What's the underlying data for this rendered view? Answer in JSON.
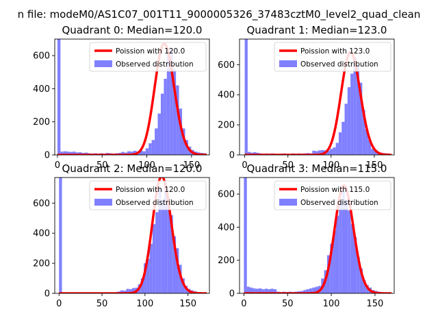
{
  "figure": {
    "suptitle": "n file: modeM0/AS1C07_001T11_9000005326_37483cztM0_level2_quad_clean"
  },
  "colors": {
    "fit": "#ff0000",
    "hist": "#8080ff",
    "axis": "#000000"
  },
  "chart_data": [
    {
      "type": "bar",
      "title": "Quadrant 0: Median=120.0",
      "median": 120.0,
      "xlim": [
        -3,
        170
      ],
      "ylim": [
        0,
        700
      ],
      "xticks": [
        0,
        50,
        100,
        150
      ],
      "yticks": [
        0,
        200,
        400,
        600
      ],
      "legend": {
        "position": "top-right",
        "fit_label": "Poission with 120.0",
        "hist_label": "Observed distribution"
      },
      "bin_width": 3.4,
      "bins": [
        [
          0,
          700
        ],
        [
          3.4,
          20
        ],
        [
          6.8,
          22
        ],
        [
          10.2,
          20
        ],
        [
          13.6,
          18
        ],
        [
          17,
          20
        ],
        [
          20.4,
          15
        ],
        [
          23.8,
          16
        ],
        [
          27.2,
          12
        ],
        [
          30.6,
          14
        ],
        [
          34,
          10
        ],
        [
          37.4,
          8
        ],
        [
          40.8,
          10
        ],
        [
          44.2,
          8
        ],
        [
          47.6,
          10
        ],
        [
          51,
          8
        ],
        [
          54.4,
          12
        ],
        [
          57.8,
          10
        ],
        [
          61.2,
          8
        ],
        [
          64.6,
          10
        ],
        [
          68,
          12
        ],
        [
          71.4,
          18
        ],
        [
          74.8,
          14
        ],
        [
          78.2,
          22
        ],
        [
          81.6,
          20
        ],
        [
          85,
          25
        ],
        [
          88.4,
          20
        ],
        [
          91.8,
          28
        ],
        [
          95.2,
          22
        ],
        [
          98.6,
          40
        ],
        [
          102,
          70
        ],
        [
          105.4,
          90
        ],
        [
          108.8,
          160
        ],
        [
          112.2,
          250
        ],
        [
          115.6,
          370
        ],
        [
          119,
          460
        ],
        [
          122.4,
          620
        ],
        [
          125.8,
          640
        ],
        [
          129.2,
          520
        ],
        [
          132.6,
          420
        ],
        [
          136,
          280
        ],
        [
          139.4,
          160
        ],
        [
          142.8,
          90
        ],
        [
          146.2,
          50
        ],
        [
          149.6,
          30
        ],
        [
          153,
          20
        ],
        [
          156.4,
          15
        ],
        [
          159.8,
          12
        ],
        [
          163.2,
          10
        ]
      ]
    },
    {
      "type": "bar",
      "title": "Quadrant 1: Median=123.0",
      "median": 123.0,
      "xlim": [
        -6,
        173
      ],
      "ylim": [
        0,
        770
      ],
      "xticks": [
        0,
        50,
        100,
        150
      ],
      "yticks": [
        0,
        200,
        400,
        600
      ],
      "legend": {
        "position": "top-right",
        "fit_label": "Poission with 123.0",
        "hist_label": "Observed distribution"
      },
      "bin_width": 3.4,
      "bins": [
        [
          0,
          770
        ],
        [
          3.4,
          20
        ],
        [
          6.8,
          15
        ],
        [
          10.2,
          18
        ],
        [
          13.6,
          14
        ],
        [
          17,
          10
        ],
        [
          20.4,
          8
        ],
        [
          23.8,
          10
        ],
        [
          27.2,
          8
        ],
        [
          30.6,
          10
        ],
        [
          34,
          8
        ],
        [
          37.4,
          6
        ],
        [
          40.8,
          8
        ],
        [
          44.2,
          10
        ],
        [
          47.6,
          8
        ],
        [
          51,
          6
        ],
        [
          54.4,
          10
        ],
        [
          57.8,
          8
        ],
        [
          61.2,
          10
        ],
        [
          64.6,
          8
        ],
        [
          68,
          10
        ],
        [
          71.4,
          12
        ],
        [
          74.8,
          10
        ],
        [
          78.2,
          28
        ],
        [
          81.6,
          25
        ],
        [
          85,
          30
        ],
        [
          88.4,
          32
        ],
        [
          91.8,
          30
        ],
        [
          95.2,
          28
        ],
        [
          98.6,
          40
        ],
        [
          102,
          50
        ],
        [
          105.4,
          80
        ],
        [
          108.8,
          150
        ],
        [
          112.2,
          220
        ],
        [
          115.6,
          340
        ],
        [
          119,
          450
        ],
        [
          122.4,
          540
        ],
        [
          125.8,
          650
        ],
        [
          129.2,
          600
        ],
        [
          132.6,
          480
        ],
        [
          136,
          300
        ],
        [
          139.4,
          170
        ],
        [
          142.8,
          100
        ],
        [
          146.2,
          40
        ],
        [
          149.6,
          25
        ],
        [
          153,
          20
        ],
        [
          156.4,
          15
        ],
        [
          159.8,
          12
        ],
        [
          163.2,
          10
        ]
      ]
    },
    {
      "type": "bar",
      "title": "Quadrant 2: Median=120.0",
      "median": 120.0,
      "xlim": [
        -5,
        175
      ],
      "ylim": [
        0,
        770
      ],
      "xticks": [
        0,
        50,
        100,
        150
      ],
      "yticks": [
        0,
        200,
        400,
        600
      ],
      "legend": {
        "position": "top-right",
        "fit_label": "Poission with 120.0",
        "hist_label": "Observed distribution"
      },
      "bin_width": 3.4,
      "bins": [
        [
          0,
          770
        ],
        [
          3.4,
          5
        ],
        [
          6.8,
          4
        ],
        [
          10.2,
          5
        ],
        [
          13.6,
          4
        ],
        [
          17,
          5
        ],
        [
          20.4,
          4
        ],
        [
          23.8,
          5
        ],
        [
          27.2,
          4
        ],
        [
          30.6,
          5
        ],
        [
          34,
          4
        ],
        [
          37.4,
          5
        ],
        [
          40.8,
          4
        ],
        [
          44.2,
          5
        ],
        [
          47.6,
          4
        ],
        [
          51,
          5
        ],
        [
          54.4,
          4
        ],
        [
          57.8,
          5
        ],
        [
          61.2,
          6
        ],
        [
          64.6,
          8
        ],
        [
          68,
          12
        ],
        [
          71.4,
          20
        ],
        [
          74.8,
          18
        ],
        [
          78.2,
          30
        ],
        [
          81.6,
          28
        ],
        [
          85,
          35
        ],
        [
          88.4,
          38
        ],
        [
          91.8,
          60
        ],
        [
          95.2,
          100
        ],
        [
          98.6,
          200
        ],
        [
          102,
          230
        ],
        [
          105.4,
          330
        ],
        [
          108.8,
          460
        ],
        [
          112.2,
          540
        ],
        [
          115.6,
          700
        ],
        [
          119,
          620
        ],
        [
          122.4,
          740
        ],
        [
          125.8,
          600
        ],
        [
          129.2,
          520
        ],
        [
          132.6,
          380
        ],
        [
          136,
          300
        ],
        [
          139.4,
          190
        ],
        [
          142.8,
          100
        ],
        [
          146.2,
          50
        ],
        [
          149.6,
          30
        ],
        [
          153,
          20
        ],
        [
          156.4,
          15
        ]
      ]
    },
    {
      "type": "bar",
      "title": "Quadrant 3: Median=115.0",
      "median": 115.0,
      "xlim": [
        -5,
        172
      ],
      "ylim": [
        0,
        700
      ],
      "xticks": [
        0,
        50,
        100,
        150
      ],
      "yticks": [
        0,
        200,
        400,
        600
      ],
      "legend": {
        "position": "top-right",
        "fit_label": "Poission with 115.0",
        "hist_label": "Observed distribution"
      },
      "bin_width": 3.4,
      "bins": [
        [
          0,
          700
        ],
        [
          3.4,
          40
        ],
        [
          6.8,
          35
        ],
        [
          10.2,
          30
        ],
        [
          13.6,
          28
        ],
        [
          17,
          30
        ],
        [
          20.4,
          25
        ],
        [
          23.8,
          28
        ],
        [
          27.2,
          25
        ],
        [
          30.6,
          28
        ],
        [
          34,
          25
        ],
        [
          37.4,
          10
        ],
        [
          40.8,
          8
        ],
        [
          44.2,
          10
        ],
        [
          47.6,
          8
        ],
        [
          51,
          10
        ],
        [
          54.4,
          8
        ],
        [
          57.8,
          10
        ],
        [
          61.2,
          12
        ],
        [
          64.6,
          14
        ],
        [
          68,
          20
        ],
        [
          71.4,
          25
        ],
        [
          74.8,
          30
        ],
        [
          78.2,
          35
        ],
        [
          81.6,
          40
        ],
        [
          85,
          45
        ],
        [
          88.4,
          90
        ],
        [
          91.8,
          140
        ],
        [
          95.2,
          230
        ],
        [
          98.6,
          300
        ],
        [
          102,
          380
        ],
        [
          105.4,
          470
        ],
        [
          108.8,
          560
        ],
        [
          112.2,
          620
        ],
        [
          115.6,
          560
        ],
        [
          119,
          500
        ],
        [
          122.4,
          420
        ],
        [
          125.8,
          340
        ],
        [
          129.2,
          220
        ],
        [
          132.6,
          150
        ],
        [
          136,
          80
        ],
        [
          139.4,
          50
        ],
        [
          142.8,
          35
        ],
        [
          146.2,
          20
        ],
        [
          149.6,
          15
        ],
        [
          153,
          10
        ]
      ]
    }
  ]
}
